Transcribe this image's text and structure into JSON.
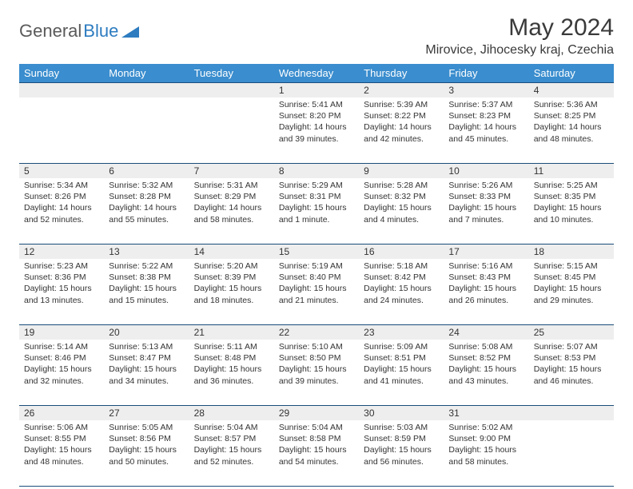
{
  "brand": {
    "part1": "General",
    "part2": "Blue"
  },
  "title": "May 2024",
  "location": "Mirovice, Jihocesky kraj, Czechia",
  "colors": {
    "header_bg": "#3a8dce",
    "header_text": "#ffffff",
    "daynum_bg": "#eeeeee",
    "rule": "#1a4d7a",
    "text": "#333333",
    "brand_gray": "#5a5a5a",
    "brand_blue": "#2d7cc0",
    "background": "#ffffff"
  },
  "day_labels": [
    "Sunday",
    "Monday",
    "Tuesday",
    "Wednesday",
    "Thursday",
    "Friday",
    "Saturday"
  ],
  "weeks": [
    [
      {
        "n": "",
        "sr": "",
        "ss": "",
        "dl": ""
      },
      {
        "n": "",
        "sr": "",
        "ss": "",
        "dl": ""
      },
      {
        "n": "",
        "sr": "",
        "ss": "",
        "dl": ""
      },
      {
        "n": "1",
        "sr": "5:41 AM",
        "ss": "8:20 PM",
        "dl": "14 hours and 39 minutes."
      },
      {
        "n": "2",
        "sr": "5:39 AM",
        "ss": "8:22 PM",
        "dl": "14 hours and 42 minutes."
      },
      {
        "n": "3",
        "sr": "5:37 AM",
        "ss": "8:23 PM",
        "dl": "14 hours and 45 minutes."
      },
      {
        "n": "4",
        "sr": "5:36 AM",
        "ss": "8:25 PM",
        "dl": "14 hours and 48 minutes."
      }
    ],
    [
      {
        "n": "5",
        "sr": "5:34 AM",
        "ss": "8:26 PM",
        "dl": "14 hours and 52 minutes."
      },
      {
        "n": "6",
        "sr": "5:32 AM",
        "ss": "8:28 PM",
        "dl": "14 hours and 55 minutes."
      },
      {
        "n": "7",
        "sr": "5:31 AM",
        "ss": "8:29 PM",
        "dl": "14 hours and 58 minutes."
      },
      {
        "n": "8",
        "sr": "5:29 AM",
        "ss": "8:31 PM",
        "dl": "15 hours and 1 minute."
      },
      {
        "n": "9",
        "sr": "5:28 AM",
        "ss": "8:32 PM",
        "dl": "15 hours and 4 minutes."
      },
      {
        "n": "10",
        "sr": "5:26 AM",
        "ss": "8:33 PM",
        "dl": "15 hours and 7 minutes."
      },
      {
        "n": "11",
        "sr": "5:25 AM",
        "ss": "8:35 PM",
        "dl": "15 hours and 10 minutes."
      }
    ],
    [
      {
        "n": "12",
        "sr": "5:23 AM",
        "ss": "8:36 PM",
        "dl": "15 hours and 13 minutes."
      },
      {
        "n": "13",
        "sr": "5:22 AM",
        "ss": "8:38 PM",
        "dl": "15 hours and 15 minutes."
      },
      {
        "n": "14",
        "sr": "5:20 AM",
        "ss": "8:39 PM",
        "dl": "15 hours and 18 minutes."
      },
      {
        "n": "15",
        "sr": "5:19 AM",
        "ss": "8:40 PM",
        "dl": "15 hours and 21 minutes."
      },
      {
        "n": "16",
        "sr": "5:18 AM",
        "ss": "8:42 PM",
        "dl": "15 hours and 24 minutes."
      },
      {
        "n": "17",
        "sr": "5:16 AM",
        "ss": "8:43 PM",
        "dl": "15 hours and 26 minutes."
      },
      {
        "n": "18",
        "sr": "5:15 AM",
        "ss": "8:45 PM",
        "dl": "15 hours and 29 minutes."
      }
    ],
    [
      {
        "n": "19",
        "sr": "5:14 AM",
        "ss": "8:46 PM",
        "dl": "15 hours and 32 minutes."
      },
      {
        "n": "20",
        "sr": "5:13 AM",
        "ss": "8:47 PM",
        "dl": "15 hours and 34 minutes."
      },
      {
        "n": "21",
        "sr": "5:11 AM",
        "ss": "8:48 PM",
        "dl": "15 hours and 36 minutes."
      },
      {
        "n": "22",
        "sr": "5:10 AM",
        "ss": "8:50 PM",
        "dl": "15 hours and 39 minutes."
      },
      {
        "n": "23",
        "sr": "5:09 AM",
        "ss": "8:51 PM",
        "dl": "15 hours and 41 minutes."
      },
      {
        "n": "24",
        "sr": "5:08 AM",
        "ss": "8:52 PM",
        "dl": "15 hours and 43 minutes."
      },
      {
        "n": "25",
        "sr": "5:07 AM",
        "ss": "8:53 PM",
        "dl": "15 hours and 46 minutes."
      }
    ],
    [
      {
        "n": "26",
        "sr": "5:06 AM",
        "ss": "8:55 PM",
        "dl": "15 hours and 48 minutes."
      },
      {
        "n": "27",
        "sr": "5:05 AM",
        "ss": "8:56 PM",
        "dl": "15 hours and 50 minutes."
      },
      {
        "n": "28",
        "sr": "5:04 AM",
        "ss": "8:57 PM",
        "dl": "15 hours and 52 minutes."
      },
      {
        "n": "29",
        "sr": "5:04 AM",
        "ss": "8:58 PM",
        "dl": "15 hours and 54 minutes."
      },
      {
        "n": "30",
        "sr": "5:03 AM",
        "ss": "8:59 PM",
        "dl": "15 hours and 56 minutes."
      },
      {
        "n": "31",
        "sr": "5:02 AM",
        "ss": "9:00 PM",
        "dl": "15 hours and 58 minutes."
      },
      {
        "n": "",
        "sr": "",
        "ss": "",
        "dl": ""
      }
    ]
  ],
  "labels": {
    "sunrise": "Sunrise:",
    "sunset": "Sunset:",
    "daylight": "Daylight:"
  }
}
